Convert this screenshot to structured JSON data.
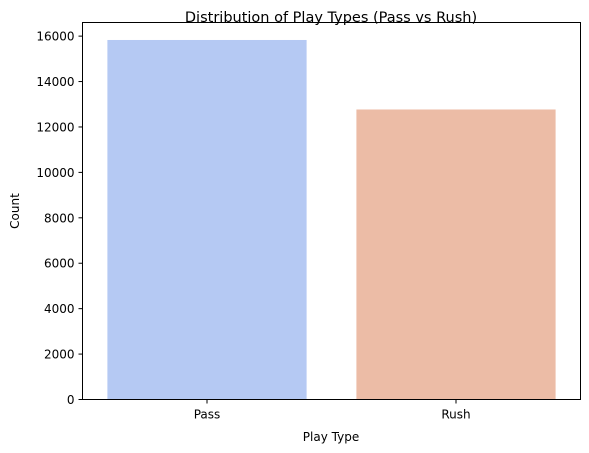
{
  "chart_data": {
    "type": "bar",
    "title": "Distribution of Play Types (Pass vs Rush)",
    "xlabel": "Play Type",
    "ylabel": "Count",
    "categories": [
      "Pass",
      "Rush"
    ],
    "values": [
      15830,
      12770
    ],
    "colors": [
      "#b5c9f3",
      "#ecbca6"
    ],
    "ylim": [
      0,
      16600
    ],
    "yticks": [
      0,
      2000,
      4000,
      6000,
      8000,
      10000,
      12000,
      14000,
      16000
    ],
    "grid": false,
    "legend": "none"
  }
}
